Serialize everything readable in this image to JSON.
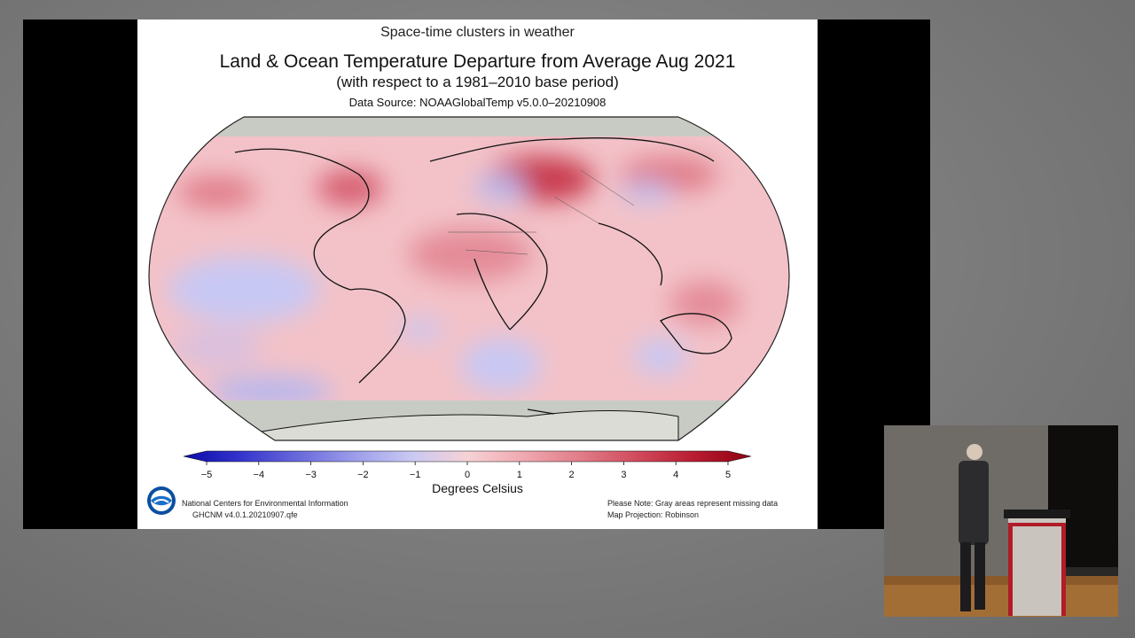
{
  "slide": {
    "heading": "Space-time clusters in weather",
    "title": "Land & Ocean Temperature Departure from Average Aug 2021",
    "subtitle": "(with respect to a 1981–2010 base period)",
    "source": "Data Source: NOAAGlobalTemp v5.0.0–20210908"
  },
  "legend": {
    "ticks": [
      "−5",
      "−4",
      "−3",
      "−2",
      "−1",
      "0",
      "1",
      "2",
      "3",
      "4",
      "5"
    ],
    "units": "Degrees Celsius",
    "colors": [
      "#0a0aa8",
      "#3434cc",
      "#6868dc",
      "#9c9cea",
      "#c8c8f4",
      "#f6d2d6",
      "#f0a8b0",
      "#e07c88",
      "#d04a5c",
      "#b81c30",
      "#8e0012"
    ],
    "missing_color": "#c8cbc4"
  },
  "footer": {
    "org_line1": "National Centers for Environmental Information",
    "org_line2": "GHCNM v4.0.1.20210907.qfe",
    "note_line1": "Please Note: Gray areas represent missing data",
    "note_line2": "Map Projection: Robinson"
  },
  "logo": "noaa-logo"
}
